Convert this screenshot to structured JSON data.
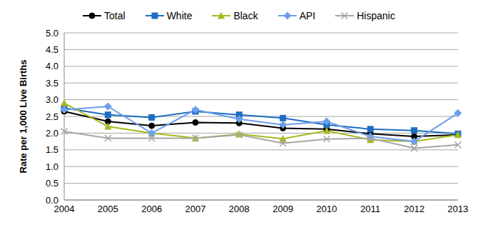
{
  "chart_data": {
    "type": "line",
    "y_label": "Rate per 1,000 Live Births",
    "categories": [
      "2004",
      "2005",
      "2006",
      "2007",
      "2008",
      "2009",
      "2010",
      "2011",
      "2012",
      "2013"
    ],
    "series": [
      {
        "name": "Total",
        "color": "#000000",
        "marker": "circle",
        "values": [
          2.65,
          2.35,
          2.22,
          2.32,
          2.3,
          2.15,
          2.12,
          1.98,
          1.9,
          1.95
        ]
      },
      {
        "name": "White",
        "color": "#1f6dc2",
        "marker": "square",
        "values": [
          2.75,
          2.55,
          2.47,
          2.65,
          2.55,
          2.45,
          2.25,
          2.12,
          2.08,
          1.98
        ]
      },
      {
        "name": "Black",
        "color": "#a8b820",
        "marker": "triangle",
        "values": [
          2.9,
          2.2,
          2.0,
          1.85,
          1.97,
          1.83,
          2.07,
          1.8,
          1.75,
          1.95
        ]
      },
      {
        "name": "API",
        "color": "#6d9eeb",
        "marker": "diamond",
        "values": [
          2.7,
          2.8,
          2.0,
          2.7,
          2.42,
          2.25,
          2.35,
          1.9,
          1.75,
          2.6
        ]
      },
      {
        "name": "Hispanic",
        "color": "#a6a6a6",
        "marker": "x",
        "values": [
          2.05,
          1.85,
          1.85,
          1.85,
          1.95,
          1.7,
          1.82,
          1.85,
          1.55,
          1.65
        ]
      }
    ],
    "ylim": [
      0,
      5
    ],
    "yticks": [
      {
        "value": 0,
        "label": "0.0"
      },
      {
        "value": 0.5,
        "label": "0.5"
      },
      {
        "value": 1,
        "label": "1.0"
      },
      {
        "value": 1.5,
        "label": "1.5"
      },
      {
        "value": 2,
        "label": "2.0"
      },
      {
        "value": 2.5,
        "label": "2.5"
      },
      {
        "value": 3,
        "label": "3.0"
      },
      {
        "value": 3.5,
        "label": "3.5"
      },
      {
        "value": 4,
        "label": "4.0"
      },
      {
        "value": 4.5,
        "label": "4.5"
      },
      {
        "value": 5,
        "label": "5.0"
      }
    ],
    "grid": true,
    "legend": "top"
  }
}
